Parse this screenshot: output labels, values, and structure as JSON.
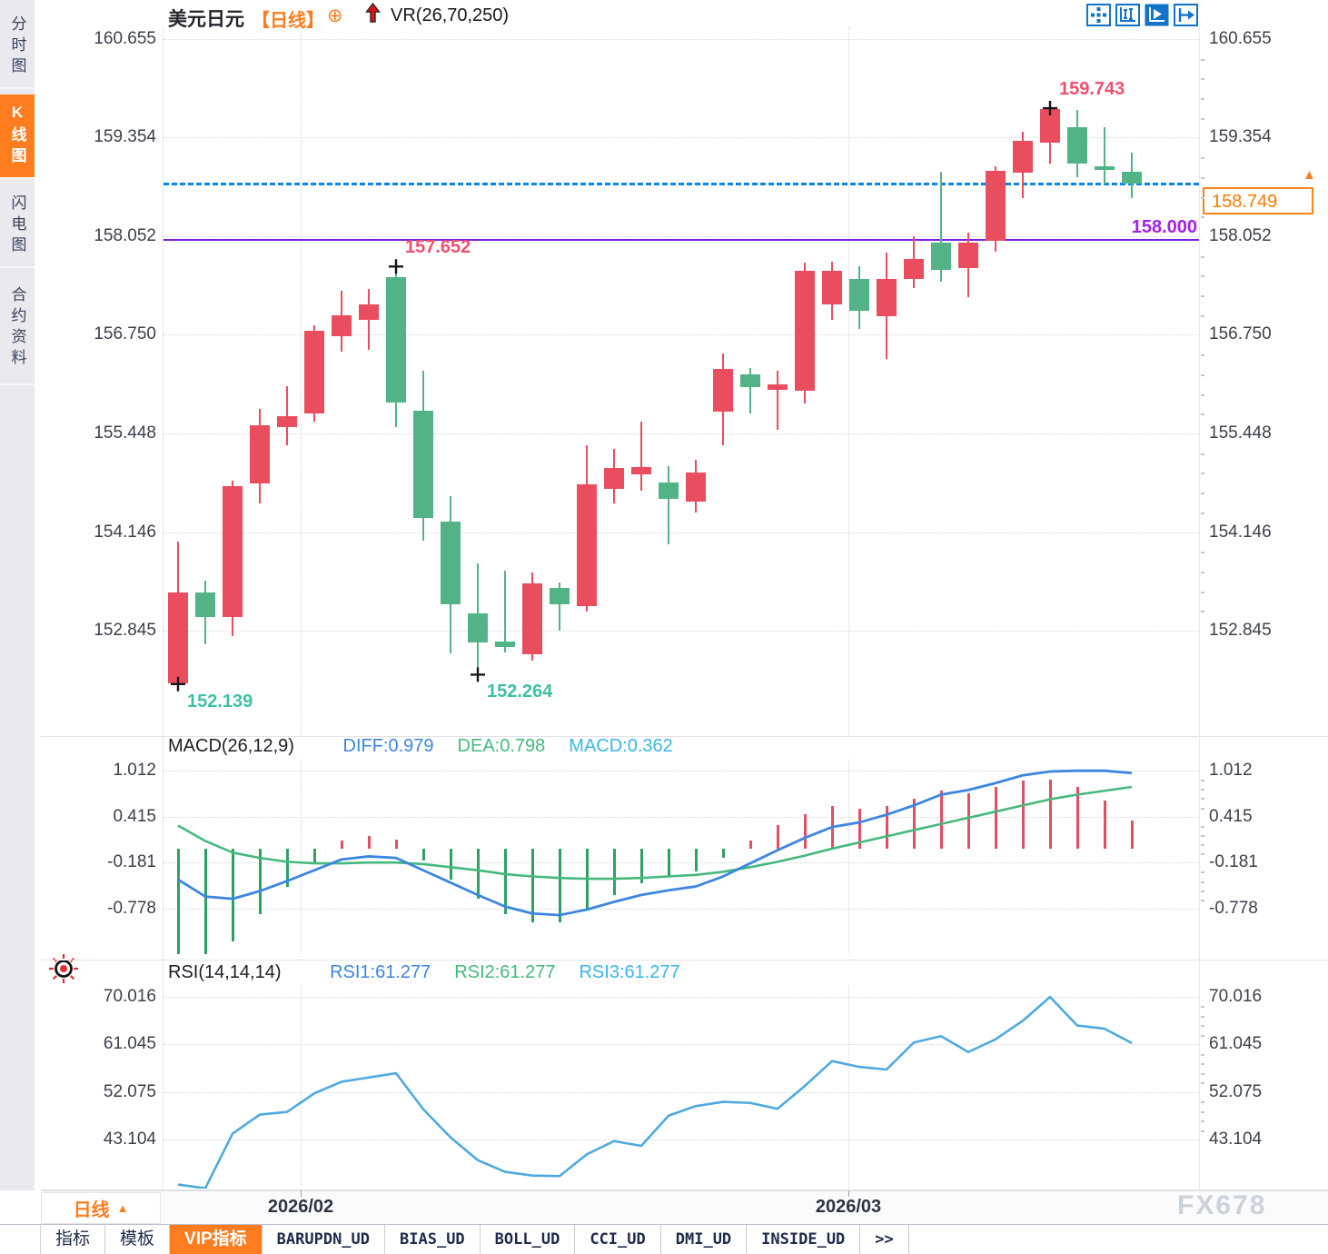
{
  "watermark": "FX678",
  "palette": {
    "up": "#ea4e5e",
    "down": "#52b486",
    "hist_up": "#e05062",
    "hist_down": "#2fa065",
    "macd_diff": "#3d86e0",
    "macd_dea": "#45b97c",
    "macd_value": "#38b6e8",
    "rsi_line": "#4fa9de",
    "accent": "#ff7d1f",
    "purple": "#7b1fe0",
    "current_blue": "#0a84f0",
    "label_low": "#3fbfa6",
    "label_high": "#f14f6e"
  },
  "sidebar": {
    "items": [
      {
        "key": "tab-time-chart",
        "label": "分时图",
        "active": false
      },
      {
        "key": "tab-kline-chart",
        "label": "K线图",
        "active": true
      },
      {
        "key": "tab-flash-chart",
        "label": "闪电图",
        "active": false
      },
      {
        "key": "tab-contract-info",
        "label": "合约资料",
        "active": false
      }
    ]
  },
  "header": {
    "symbol": "美元日元",
    "period": "【日线】",
    "vr": "VR(26,70,250)"
  },
  "toolbar": {
    "icons": [
      "pan-icon",
      "scale-range-icon",
      "auto-scroll-icon",
      "jump-latest-icon"
    ]
  },
  "period_selector": {
    "label": "日线"
  },
  "bottom_tabs": {
    "items": [
      {
        "key": "tab-indicators",
        "label": "指标",
        "active": false,
        "mono": false
      },
      {
        "key": "tab-templates",
        "label": "模板",
        "active": false,
        "mono": false
      },
      {
        "key": "tab-vip-indicators",
        "label": "VIP指标",
        "active": true,
        "mono": false
      },
      {
        "key": "tab-barupdn",
        "label": "BARUPDN_UD",
        "active": false,
        "mono": true
      },
      {
        "key": "tab-bias",
        "label": "BIAS_UD",
        "active": false,
        "mono": true
      },
      {
        "key": "tab-boll",
        "label": "BOLL_UD",
        "active": false,
        "mono": true
      },
      {
        "key": "tab-cci",
        "label": "CCI_UD",
        "active": false,
        "mono": true
      },
      {
        "key": "tab-dmi",
        "label": "DMI_UD",
        "active": false,
        "mono": true
      },
      {
        "key": "tab-inside",
        "label": "INSIDE_UD",
        "active": false,
        "mono": true
      },
      {
        "key": "tab-more",
        "label": ">>",
        "active": false,
        "mono": true
      }
    ]
  },
  "chart_data": [
    {
      "type": "candlestick",
      "symbol": "美元日元",
      "period": "日线",
      "ylim": [
        152.0,
        160.8
      ],
      "yticks": [
        {
          "label": "160.655",
          "value": 160.655
        },
        {
          "label": "159.354",
          "value": 159.354
        },
        {
          "label": "158.052",
          "value": 158.052
        },
        {
          "label": "156.750",
          "value": 156.75
        },
        {
          "label": "155.448",
          "value": 155.448
        },
        {
          "label": "154.146",
          "value": 154.146
        },
        {
          "label": "152.845",
          "value": 152.845
        }
      ],
      "x_ticks": [
        {
          "label": "2026/02",
          "index": 4.5
        },
        {
          "label": "2026/03",
          "index": 24.6
        }
      ],
      "candles": [
        [
          152.15,
          154.02,
          152.139,
          153.35
        ],
        [
          153.35,
          153.5,
          152.66,
          153.03
        ],
        [
          153.03,
          154.82,
          152.77,
          154.75
        ],
        [
          154.79,
          155.77,
          154.53,
          155.56
        ],
        [
          155.53,
          156.07,
          155.29,
          155.67
        ],
        [
          155.71,
          156.88,
          155.6,
          156.8
        ],
        [
          156.73,
          157.33,
          156.53,
          157.01
        ],
        [
          156.95,
          157.35,
          156.55,
          157.15
        ],
        [
          157.51,
          157.652,
          155.53,
          155.85
        ],
        [
          155.75,
          156.28,
          154.03,
          154.33
        ],
        [
          154.29,
          154.62,
          152.55,
          153.19
        ],
        [
          153.07,
          153.73,
          152.264,
          152.69
        ],
        [
          152.7,
          153.64,
          152.56,
          152.63
        ],
        [
          152.53,
          153.61,
          152.45,
          153.47
        ],
        [
          153.41,
          153.48,
          152.85,
          153.19
        ],
        [
          153.17,
          155.29,
          153.1,
          154.78
        ],
        [
          154.72,
          155.25,
          154.53,
          154.99
        ],
        [
          154.91,
          155.6,
          154.69,
          155.0
        ],
        [
          154.8,
          155.02,
          153.99,
          154.59
        ],
        [
          154.55,
          155.1,
          154.4,
          154.93
        ],
        [
          155.73,
          156.5,
          155.29,
          156.3
        ],
        [
          156.23,
          156.31,
          155.71,
          156.06
        ],
        [
          156.02,
          156.27,
          155.5,
          156.09
        ],
        [
          156.01,
          157.7,
          155.84,
          157.6
        ],
        [
          157.15,
          157.72,
          156.95,
          157.6
        ],
        [
          157.49,
          157.66,
          156.83,
          157.07
        ],
        [
          157.0,
          157.84,
          156.43,
          157.49
        ],
        [
          157.49,
          158.05,
          157.37,
          157.75
        ],
        [
          157.97,
          158.9,
          157.45,
          157.61
        ],
        [
          157.63,
          158.1,
          157.25,
          157.97
        ],
        [
          157.99,
          158.97,
          157.85,
          158.91
        ],
        [
          158.89,
          159.43,
          158.55,
          159.31
        ],
        [
          159.29,
          159.743,
          159.01,
          159.73
        ],
        [
          159.49,
          159.72,
          158.83,
          159.01
        ],
        [
          158.97,
          159.49,
          158.73,
          158.93
        ],
        [
          158.9,
          159.16,
          158.56,
          158.749
        ]
      ],
      "markers": [
        {
          "index": 0,
          "price": 152.139,
          "label": "152.139",
          "placement": "below"
        },
        {
          "index": 11,
          "price": 152.264,
          "label": "152.264",
          "placement": "below"
        },
        {
          "index": 8,
          "price": 157.652,
          "label": "157.652",
          "placement": "above"
        },
        {
          "index": 32,
          "price": 159.743,
          "label": "159.743",
          "placement": "above"
        }
      ],
      "current": {
        "price": 158.749,
        "label": "158.749"
      },
      "hline": {
        "price": 158.0,
        "label": "158.000"
      }
    },
    {
      "type": "macd",
      "params": "MACD(26,12,9)",
      "readouts": [
        {
          "text": "DIFF:0.979",
          "color": "#3d86e0"
        },
        {
          "text": "DEA:0.798",
          "color": "#45b97c"
        },
        {
          "text": "MACD:0.362",
          "color": "#38b6e8"
        }
      ],
      "yticks": [
        {
          "label": "1.012",
          "value": 1.012
        },
        {
          "label": "0.415",
          "value": 0.415
        },
        {
          "label": "-0.181",
          "value": -0.181
        },
        {
          "label": "-0.778",
          "value": -0.778
        }
      ],
      "diff": [
        -0.4,
        -0.62,
        -0.65,
        -0.55,
        -0.42,
        -0.28,
        -0.14,
        -0.1,
        -0.12,
        -0.28,
        -0.44,
        -0.6,
        -0.75,
        -0.84,
        -0.86,
        -0.79,
        -0.69,
        -0.6,
        -0.54,
        -0.49,
        -0.36,
        -0.19,
        -0.02,
        0.14,
        0.28,
        0.34,
        0.44,
        0.56,
        0.7,
        0.76,
        0.85,
        0.95,
        1.0,
        1.01,
        1.01,
        0.98
      ],
      "dea": [
        0.3,
        0.1,
        -0.05,
        -0.12,
        -0.17,
        -0.19,
        -0.19,
        -0.18,
        -0.18,
        -0.2,
        -0.24,
        -0.28,
        -0.33,
        -0.36,
        -0.38,
        -0.39,
        -0.39,
        -0.38,
        -0.36,
        -0.34,
        -0.3,
        -0.24,
        -0.17,
        -0.09,
        0.0,
        0.08,
        0.16,
        0.24,
        0.32,
        0.4,
        0.48,
        0.56,
        0.64,
        0.7,
        0.75,
        0.8
      ],
      "hist": [
        -1.4,
        -1.45,
        -1.2,
        -0.85,
        -0.5,
        -0.18,
        0.1,
        0.16,
        0.12,
        -0.15,
        -0.4,
        -0.65,
        -0.85,
        -0.95,
        -0.95,
        -0.8,
        -0.6,
        -0.45,
        -0.35,
        -0.3,
        -0.12,
        0.1,
        0.3,
        0.45,
        0.55,
        0.52,
        0.55,
        0.65,
        0.75,
        0.72,
        0.8,
        0.88,
        0.9,
        0.8,
        0.62,
        0.36
      ]
    },
    {
      "type": "line",
      "params": "RSI(14,14,14)",
      "readouts": [
        {
          "text": "RSI1:61.277",
          "color": "#3d86e0"
        },
        {
          "text": "RSI2:61.277",
          "color": "#45b97c"
        },
        {
          "text": "RSI3:61.277",
          "color": "#38b6e8"
        }
      ],
      "yticks": [
        {
          "label": "70.016",
          "value": 70.016
        },
        {
          "label": "61.045",
          "value": 61.045
        },
        {
          "label": "52.075",
          "value": 52.075
        },
        {
          "label": "43.104",
          "value": 43.104
        }
      ],
      "values": [
        34.6,
        33.9,
        44.2,
        47.8,
        48.3,
        51.8,
        54.0,
        54.8,
        55.6,
        48.8,
        43.5,
        39.2,
        37.0,
        36.3,
        36.2,
        40.3,
        42.8,
        41.9,
        47.6,
        49.4,
        50.2,
        50.0,
        48.9,
        53.2,
        57.9,
        56.8,
        56.3,
        61.4,
        62.6,
        59.6,
        62.0,
        65.5,
        70.0,
        64.6,
        64.0,
        61.3
      ]
    }
  ]
}
